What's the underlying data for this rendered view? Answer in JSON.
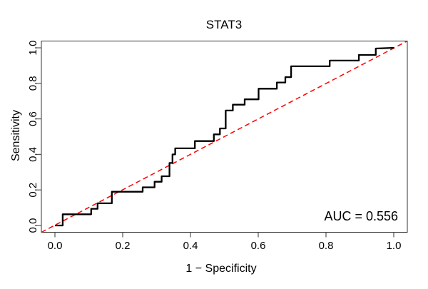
{
  "figure": {
    "title": "STAT3",
    "x_axis_label": "1 − Specificity",
    "y_axis_label": "Sensitivity",
    "auc_label": "AUC = 0.556"
  },
  "chart_data": {
    "type": "line",
    "subtype": "roc-step-curve",
    "title": "STAT3",
    "xlabel": "1 − Specificity",
    "ylabel": "Sensitivity",
    "xlim": [
      0,
      1
    ],
    "ylim": [
      0,
      1
    ],
    "axis_padding_fraction": 0.04,
    "grid": false,
    "legend": "none",
    "auc": 0.556,
    "annotations": [
      {
        "text": "AUC = 0.556",
        "position": "bottom-right"
      }
    ],
    "xticks": {
      "values": [
        0,
        0.2,
        0.4,
        0.6,
        0.8,
        1.0
      ],
      "labels": [
        "0.0",
        "0.2",
        "0.4",
        "0.6",
        "0.8",
        "1.0"
      ]
    },
    "yticks": {
      "values": [
        0,
        0.2,
        0.4,
        0.6,
        0.8,
        1.0
      ],
      "labels": [
        "0.0",
        "0.2",
        "0.4",
        "0.6",
        "0.8",
        "1.0"
      ]
    },
    "series": [
      {
        "name": "Reference diagonal (chance line)",
        "style": "dashed-line",
        "extend_to_box": true,
        "color": "#FF0000",
        "line_width": 1.5,
        "dash": [
          7,
          4.5
        ],
        "points": [
          [
            0,
            0
          ],
          [
            1,
            1
          ]
        ]
      },
      {
        "name": "ROC curve (STAT3)",
        "style": "step-line",
        "color": "#000000",
        "line_width": 2.3,
        "points": [
          [
            0.0,
            0.0
          ],
          [
            0.023,
            0.0
          ],
          [
            0.023,
            0.063
          ],
          [
            0.107,
            0.063
          ],
          [
            0.107,
            0.094
          ],
          [
            0.126,
            0.094
          ],
          [
            0.126,
            0.125
          ],
          [
            0.168,
            0.125
          ],
          [
            0.168,
            0.19
          ],
          [
            0.259,
            0.19
          ],
          [
            0.259,
            0.215
          ],
          [
            0.294,
            0.215
          ],
          [
            0.294,
            0.246
          ],
          [
            0.315,
            0.246
          ],
          [
            0.315,
            0.277
          ],
          [
            0.338,
            0.277
          ],
          [
            0.338,
            0.352
          ],
          [
            0.347,
            0.352
          ],
          [
            0.347,
            0.4
          ],
          [
            0.355,
            0.4
          ],
          [
            0.355,
            0.434
          ],
          [
            0.413,
            0.434
          ],
          [
            0.413,
            0.475
          ],
          [
            0.469,
            0.475
          ],
          [
            0.469,
            0.513
          ],
          [
            0.487,
            0.513
          ],
          [
            0.487,
            0.546
          ],
          [
            0.504,
            0.546
          ],
          [
            0.504,
            0.647
          ],
          [
            0.525,
            0.647
          ],
          [
            0.525,
            0.68
          ],
          [
            0.56,
            0.68
          ],
          [
            0.56,
            0.71
          ],
          [
            0.601,
            0.71
          ],
          [
            0.601,
            0.77
          ],
          [
            0.655,
            0.77
          ],
          [
            0.655,
            0.805
          ],
          [
            0.68,
            0.805
          ],
          [
            0.68,
            0.835
          ],
          [
            0.697,
            0.835
          ],
          [
            0.697,
            0.896
          ],
          [
            0.811,
            0.896
          ],
          [
            0.811,
            0.928
          ],
          [
            0.897,
            0.928
          ],
          [
            0.897,
            0.96
          ],
          [
            0.947,
            0.96
          ],
          [
            0.947,
            0.996
          ],
          [
            1.0,
            1.0
          ]
        ]
      }
    ]
  }
}
